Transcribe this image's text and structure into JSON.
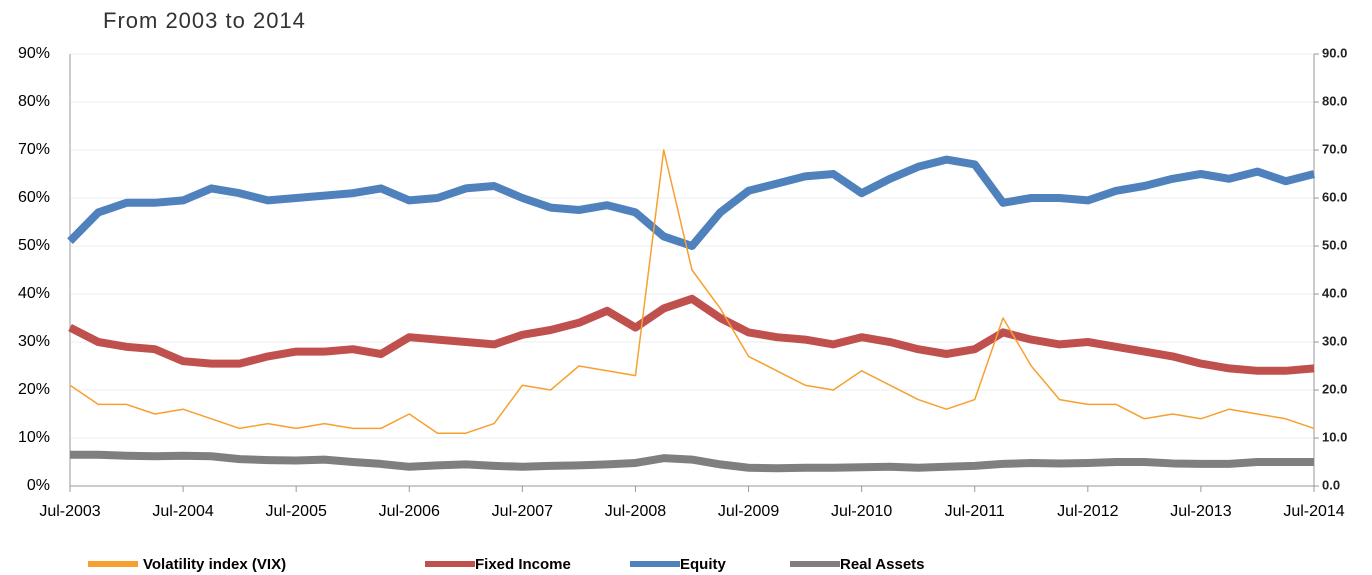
{
  "chart_data": {
    "type": "line",
    "title": "From 2003 to 2014",
    "x": [
      "2003-07",
      "2003-10",
      "2004-01",
      "2004-04",
      "2004-07",
      "2004-10",
      "2005-01",
      "2005-04",
      "2005-07",
      "2005-10",
      "2006-01",
      "2006-04",
      "2006-07",
      "2006-10",
      "2007-01",
      "2007-04",
      "2007-07",
      "2007-10",
      "2008-01",
      "2008-04",
      "2008-07",
      "2008-10",
      "2009-01",
      "2009-04",
      "2009-07",
      "2009-10",
      "2010-01",
      "2010-04",
      "2010-07",
      "2010-10",
      "2011-01",
      "2011-04",
      "2011-07",
      "2011-10",
      "2012-01",
      "2012-04",
      "2012-07",
      "2012-10",
      "2013-01",
      "2013-04",
      "2013-07",
      "2013-10",
      "2014-01",
      "2014-04",
      "2014-07"
    ],
    "xlim": [
      "2003-07",
      "2014-07"
    ],
    "xticks": [
      {
        "value": "2003-07",
        "label": "Jul-2003"
      },
      {
        "value": "2004-07",
        "label": "Jul-2004"
      },
      {
        "value": "2005-07",
        "label": "Jul-2005"
      },
      {
        "value": "2006-07",
        "label": "Jul-2006"
      },
      {
        "value": "2007-07",
        "label": "Jul-2007"
      },
      {
        "value": "2008-07",
        "label": "Jul-2008"
      },
      {
        "value": "2009-07",
        "label": "Jul-2009"
      },
      {
        "value": "2010-07",
        "label": "Jul-2010"
      },
      {
        "value": "2011-07",
        "label": "Jul-2011"
      },
      {
        "value": "2012-07",
        "label": "Jul-2012"
      },
      {
        "value": "2013-07",
        "label": "Jul-2013"
      },
      {
        "value": "2014-07",
        "label": "Jul-2014"
      }
    ],
    "ylim": [
      0,
      90
    ],
    "yticks": [
      {
        "value": 0,
        "label": "0%"
      },
      {
        "value": 10,
        "label": "10%"
      },
      {
        "value": 20,
        "label": "20%"
      },
      {
        "value": 30,
        "label": "30%"
      },
      {
        "value": 40,
        "label": "40%"
      },
      {
        "value": 50,
        "label": "50%"
      },
      {
        "value": 60,
        "label": "60%"
      },
      {
        "value": 70,
        "label": "70%"
      },
      {
        "value": 80,
        "label": "80%"
      },
      {
        "value": 90,
        "label": "90%"
      }
    ],
    "y2lim": [
      0,
      90
    ],
    "y2ticks": [
      {
        "value": 0,
        "label": "0.0"
      },
      {
        "value": 10,
        "label": "10.0"
      },
      {
        "value": 20,
        "label": "20.0"
      },
      {
        "value": 30,
        "label": "30.0"
      },
      {
        "value": 40,
        "label": "40.0"
      },
      {
        "value": 50,
        "label": "50.0"
      },
      {
        "value": 60,
        "label": "60.0"
      },
      {
        "value": 70,
        "label": "70.0"
      },
      {
        "value": 80,
        "label": "80.0"
      },
      {
        "value": 90,
        "label": "90.0"
      }
    ],
    "grid": true,
    "legend": "bottom",
    "series": [
      {
        "name": "Volatility index (VIX)",
        "color": "#f7a030",
        "axis": "y2",
        "values": [
          21,
          17,
          17,
          15,
          16,
          14,
          12,
          13,
          12,
          13,
          12,
          12,
          15,
          11,
          11,
          13,
          21,
          20,
          25,
          24,
          23,
          70,
          45,
          37,
          27,
          24,
          21,
          20,
          24,
          21,
          18,
          16,
          18,
          35,
          25,
          18,
          17,
          17,
          14,
          15,
          14,
          16,
          15,
          14,
          12
        ]
      },
      {
        "name": "Fixed Income",
        "color": "#c0504d",
        "values": [
          33,
          30,
          29,
          28.5,
          26,
          25.5,
          25.5,
          27,
          28,
          28,
          28.5,
          27.5,
          31,
          30.5,
          30,
          29.5,
          31.5,
          32.5,
          34,
          36.5,
          33,
          37,
          39,
          35,
          32,
          31,
          30.5,
          29.5,
          31,
          30,
          28.5,
          27.5,
          28.5,
          32,
          30.5,
          29.5,
          30,
          29,
          28,
          27,
          25.5,
          24.5,
          24,
          24,
          24.5
        ]
      },
      {
        "name": "Equity",
        "color": "#4f81bd",
        "values": [
          51,
          57,
          59,
          59,
          59.5,
          62,
          61,
          59.5,
          60,
          60.5,
          61,
          62,
          59.5,
          60,
          62,
          62.5,
          60,
          58,
          57.5,
          58.5,
          57,
          52,
          50,
          57,
          61.5,
          63,
          64.5,
          65,
          61,
          64,
          66.5,
          68,
          67,
          59,
          60,
          60,
          59.5,
          61.5,
          62.5,
          64,
          65,
          64,
          65.5,
          63.5,
          65
        ]
      },
      {
        "name": "Real Assets",
        "color": "#7f7f7f",
        "values": [
          6.5,
          6.5,
          6.3,
          6.2,
          6.3,
          6.2,
          5.6,
          5.4,
          5.3,
          5.5,
          5,
          4.6,
          4,
          4.3,
          4.5,
          4.2,
          4,
          4.2,
          4.3,
          4.5,
          4.8,
          5.8,
          5.5,
          4.5,
          3.8,
          3.7,
          3.8,
          3.8,
          3.9,
          4,
          3.8,
          4,
          4.2,
          4.6,
          4.8,
          4.7,
          4.8,
          5,
          5,
          4.7,
          4.6,
          4.6,
          5,
          5,
          5
        ]
      }
    ]
  }
}
